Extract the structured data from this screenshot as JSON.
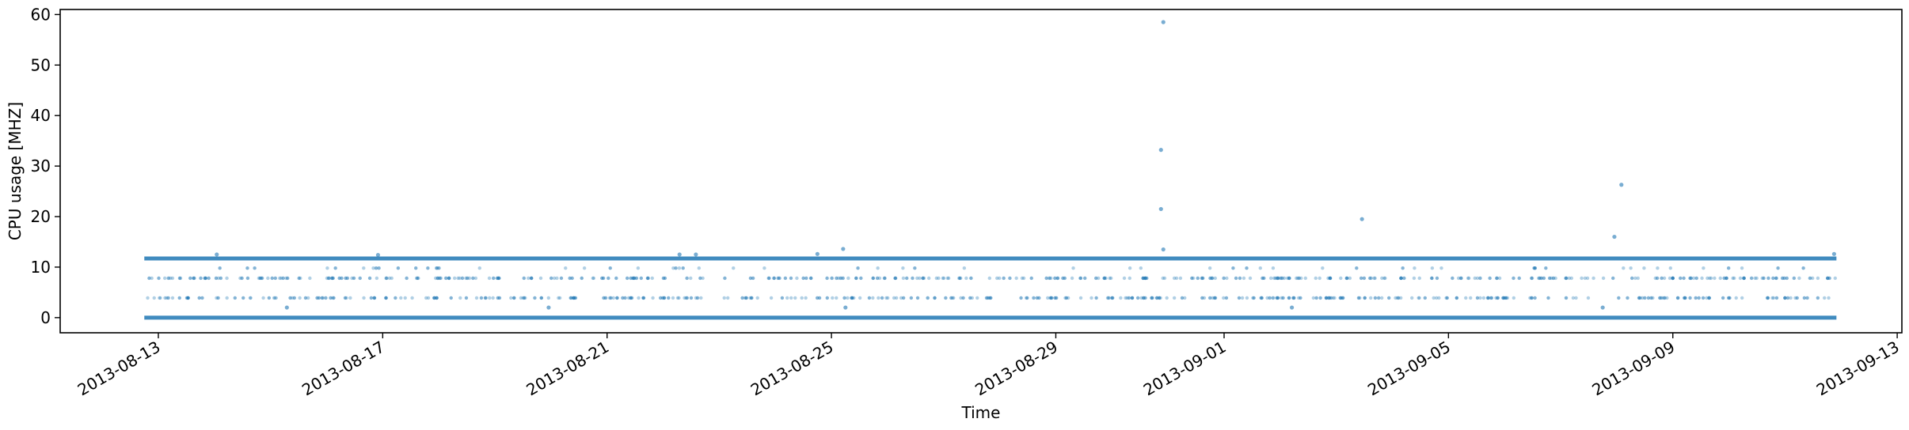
{
  "chart_data": {
    "type": "scatter",
    "xlabel": "Time",
    "ylabel": "CPU usage [MHZ]",
    "x_type": "date",
    "xlim": [
      "2013-08-11T06:00",
      "2013-09-13T02:00"
    ],
    "ylim": [
      -3,
      61
    ],
    "x_ticks": [
      "2013-08-13",
      "2013-08-17",
      "2013-08-21",
      "2013-08-25",
      "2013-08-29",
      "2013-09-01",
      "2013-09-05",
      "2013-09-09",
      "2013-09-13"
    ],
    "y_ticks": [
      0,
      10,
      20,
      30,
      40,
      50,
      60
    ],
    "data_range": [
      "2013-08-12T18:00",
      "2013-09-11T22:00"
    ],
    "color": "#1f77b4",
    "series": [
      {
        "dense_levels": [
          0,
          11.7
        ],
        "sparse_levels": [
          3.9,
          7.8,
          9.8
        ],
        "outliers": [
          {
            "x": "2013-08-14T01:00",
            "y": 12.5
          },
          {
            "x": "2013-08-16T22:00",
            "y": 12.4
          },
          {
            "x": "2013-08-22T07:00",
            "y": 12.5
          },
          {
            "x": "2013-08-22T14:00",
            "y": 12.5
          },
          {
            "x": "2013-08-24T18:00",
            "y": 12.6
          },
          {
            "x": "2013-08-25T05:00",
            "y": 13.6
          },
          {
            "x": "2013-08-30T22:00",
            "y": 58.5
          },
          {
            "x": "2013-08-30T21:00",
            "y": 33.2
          },
          {
            "x": "2013-08-30T21:00",
            "y": 21.5
          },
          {
            "x": "2013-08-30T22:00",
            "y": 13.5
          },
          {
            "x": "2013-09-03T11:00",
            "y": 19.5
          },
          {
            "x": "2013-09-07T23:00",
            "y": 16.0
          },
          {
            "x": "2013-09-08T02:00",
            "y": 26.3
          },
          {
            "x": "2013-09-11T21:00",
            "y": 12.6
          },
          {
            "x": "2013-08-15T07:00",
            "y": 2.0
          },
          {
            "x": "2013-08-19T23:00",
            "y": 2.0
          },
          {
            "x": "2013-08-25T06:00",
            "y": 2.0
          },
          {
            "x": "2013-09-02T05:00",
            "y": 2.0
          },
          {
            "x": "2013-09-07T18:00",
            "y": 2.0
          }
        ]
      }
    ]
  }
}
